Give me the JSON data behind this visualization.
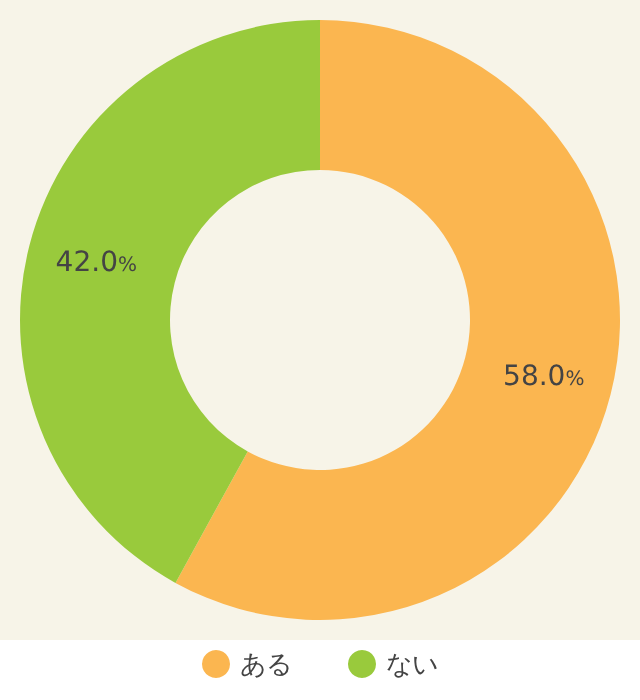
{
  "chart_data": {
    "type": "donut",
    "categories": [
      "ある",
      "ない"
    ],
    "values": [
      58.0,
      42.0
    ],
    "value_labels": [
      "58.0%",
      "42.0%"
    ],
    "colors": [
      "#fbb650",
      "#99ca3c"
    ],
    "legend": "bottom"
  }
}
